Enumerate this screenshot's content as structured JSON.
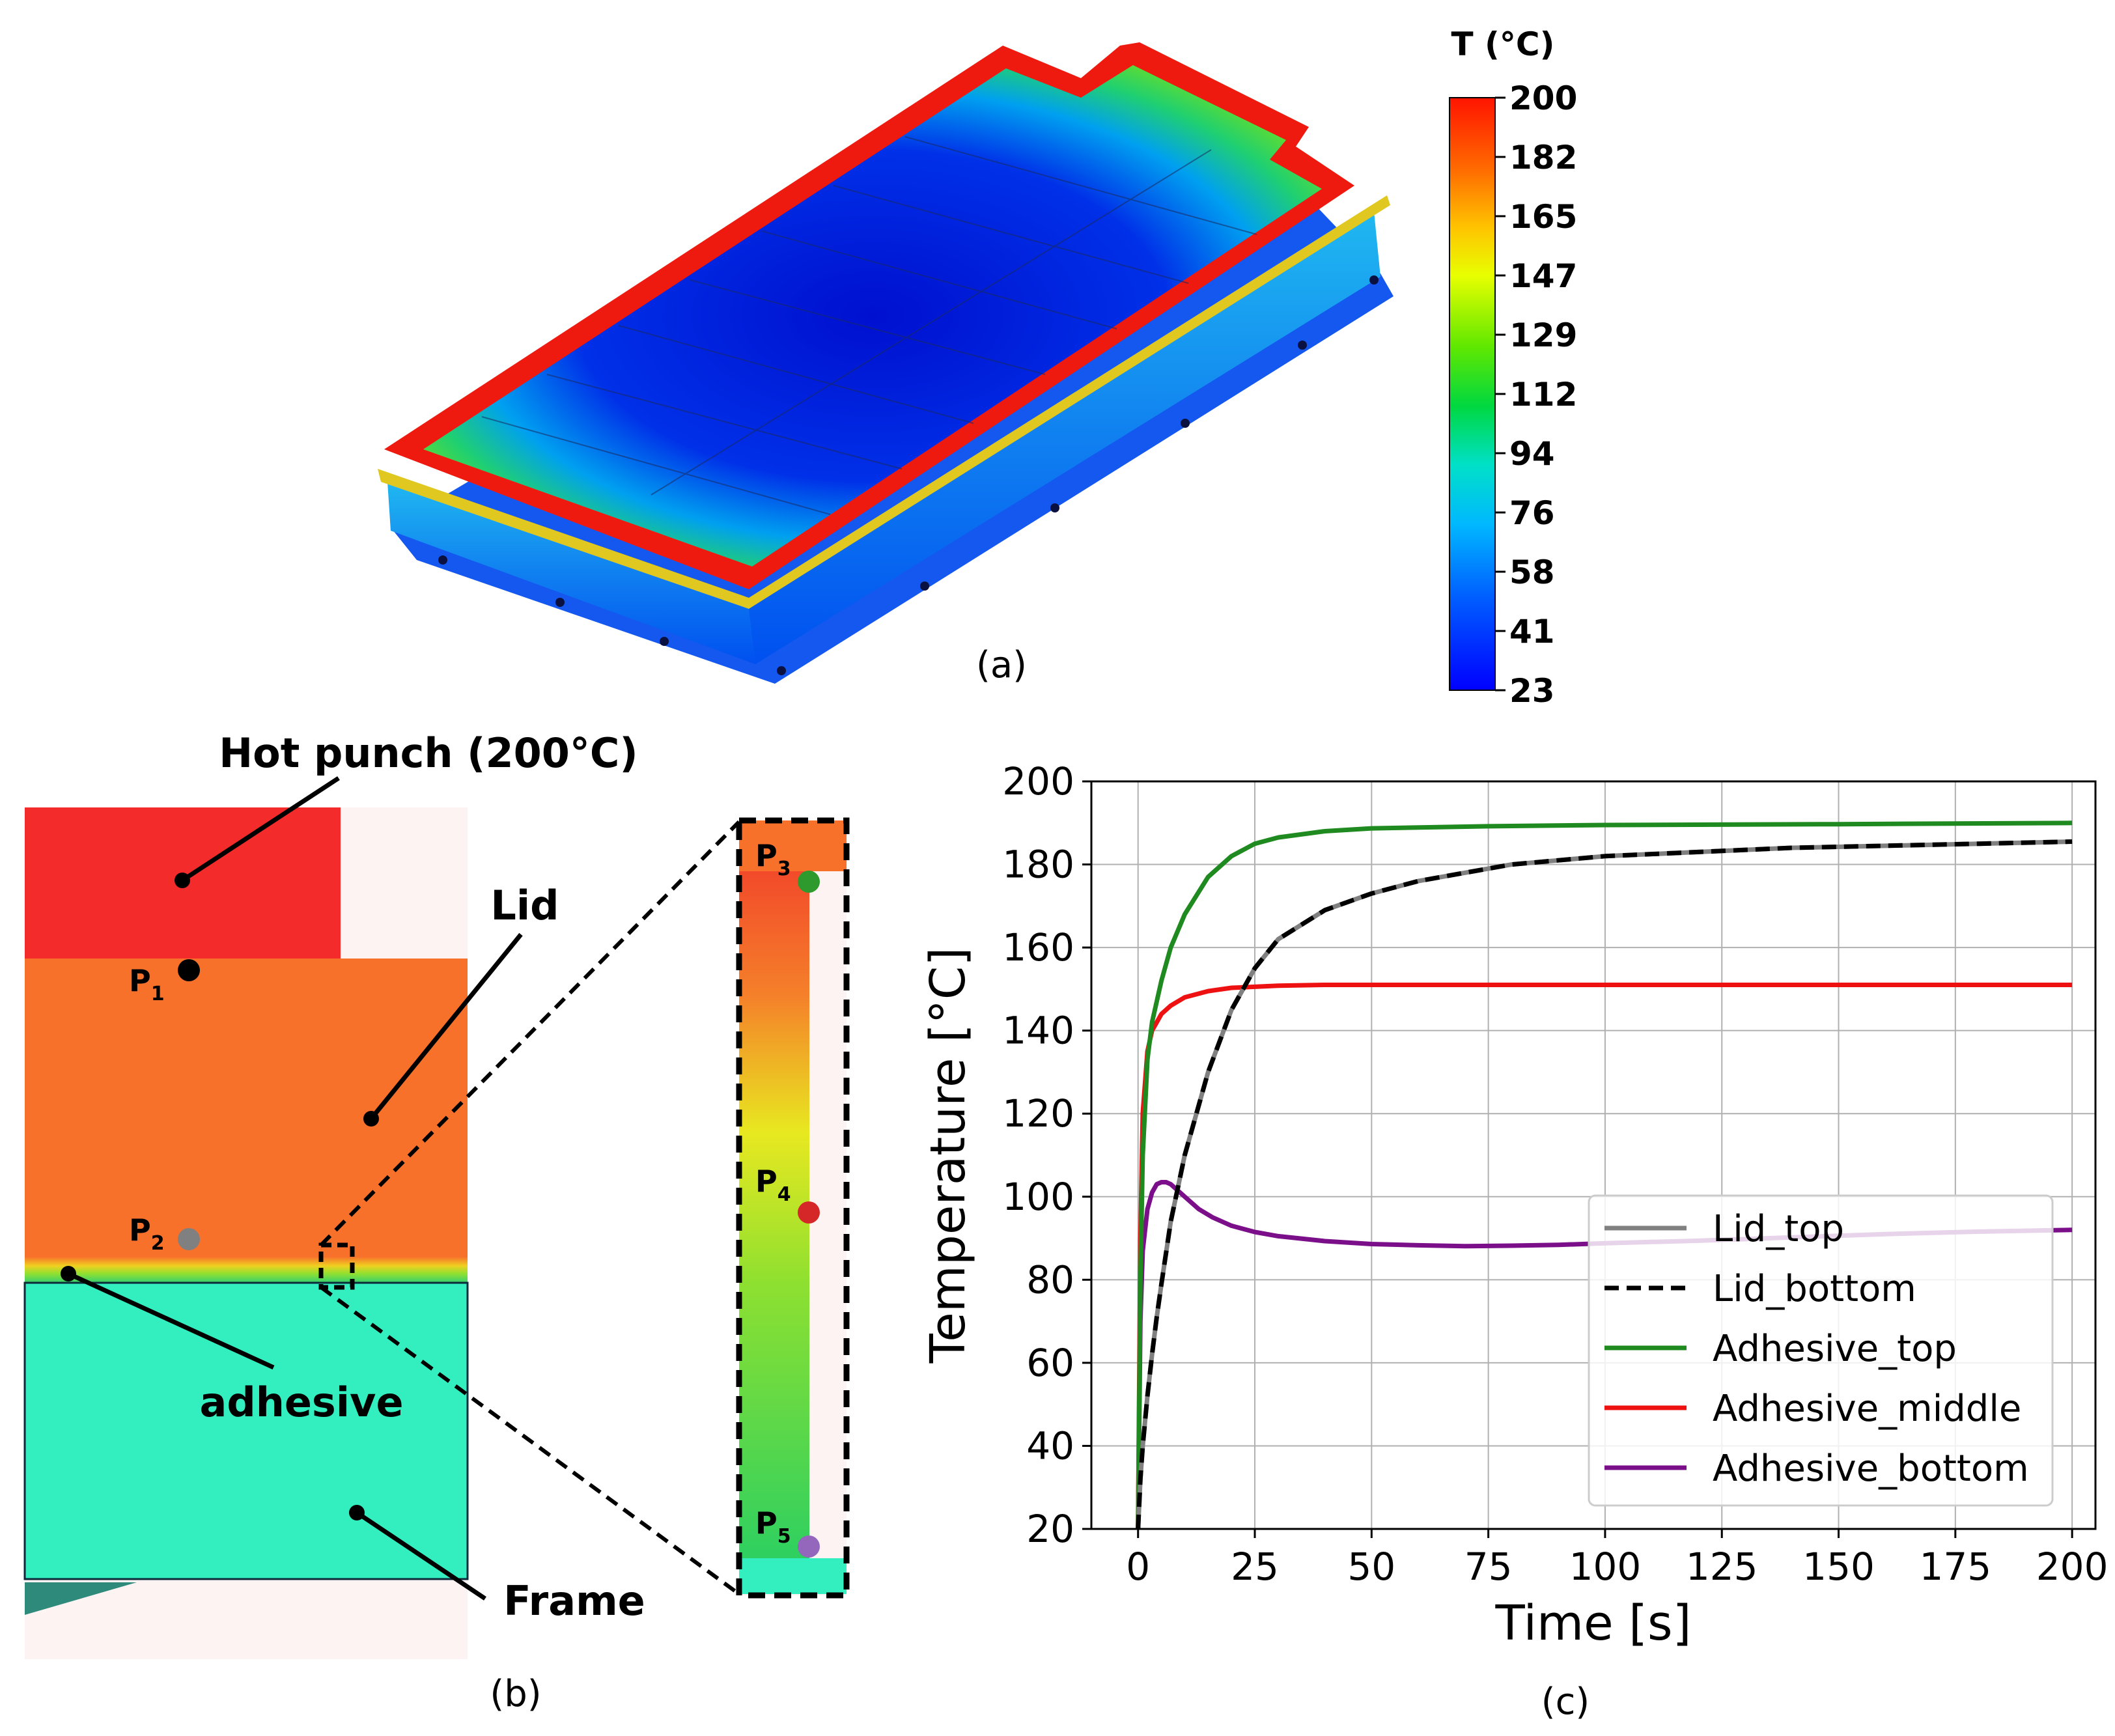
{
  "panel_a": {
    "label": "(a)",
    "colorbar": {
      "title": "T (°C)",
      "ticks": [
        "200",
        "182",
        "165",
        "147",
        "129",
        "112",
        "94",
        "76",
        "58",
        "41",
        "23"
      ],
      "colors": [
        "#ff1a00",
        "#ff7a00",
        "#ffd000",
        "#c8ff00",
        "#40e000",
        "#00d860",
        "#00e0d0",
        "#00a8ff",
        "#0050ff",
        "#0000ff"
      ]
    }
  },
  "panel_b": {
    "label": "(b)",
    "annotations": {
      "hot_punch": "Hot punch (200°C)",
      "lid": "Lid",
      "adhesive": "adhesive",
      "frame": "Frame"
    },
    "points": {
      "p1": {
        "main": "P",
        "sub": "1",
        "color": "#000000"
      },
      "p2": {
        "main": "P",
        "sub": "2",
        "color": "#808080"
      },
      "p3": {
        "main": "P",
        "sub": "3",
        "color": "#2e9a2e"
      },
      "p4": {
        "main": "P",
        "sub": "4",
        "color": "#d62728"
      },
      "p5": {
        "main": "P",
        "sub": "5",
        "color": "#9467bd"
      }
    },
    "colors": {
      "punch": "#f32b2b",
      "lid": "#f7712b",
      "frame": "#33efc0",
      "background_part": "#fdf3f3"
    }
  },
  "panel_c": {
    "label": "(c)"
  },
  "chart_data": {
    "type": "line",
    "xlabel": "Time [s]",
    "ylabel": "Temperature [°C]",
    "xlim": [
      -10,
      205
    ],
    "ylim": [
      20,
      200
    ],
    "xticks": [
      0,
      25,
      50,
      75,
      100,
      125,
      150,
      175,
      200
    ],
    "yticks": [
      20,
      40,
      60,
      80,
      100,
      120,
      140,
      160,
      180,
      200
    ],
    "grid": true,
    "legend_position": "lower-right",
    "series": [
      {
        "name": "Lid_top",
        "color": "#808080",
        "dash": "solid",
        "x": [
          0,
          0.5,
          1,
          2,
          3,
          4,
          5,
          7,
          10,
          15,
          20,
          25,
          30,
          40,
          50,
          60,
          70,
          80,
          90,
          100,
          120,
          140,
          160,
          180,
          200
        ],
        "y": [
          20,
          32,
          40,
          52,
          62,
          71,
          79,
          94,
          110,
          130,
          145,
          155,
          162,
          169,
          173,
          176,
          178,
          180,
          181,
          182,
          183,
          184,
          184.5,
          185,
          185.5
        ]
      },
      {
        "name": "Lid_bottom",
        "color": "#000000",
        "dash": "dashed",
        "x": [
          0,
          0.5,
          1,
          2,
          3,
          4,
          5,
          7,
          10,
          15,
          20,
          25,
          30,
          40,
          50,
          60,
          70,
          80,
          90,
          100,
          120,
          140,
          160,
          180,
          200
        ],
        "y": [
          20,
          32,
          40,
          52,
          62,
          71,
          79,
          94,
          110,
          130,
          145,
          155,
          162,
          169,
          173,
          176,
          178,
          180,
          181,
          182,
          183,
          184,
          184.5,
          185,
          185.5
        ]
      },
      {
        "name": "Adhesive_top",
        "color": "#1f8a1f",
        "dash": "solid",
        "x": [
          0,
          0.5,
          1,
          2,
          3,
          5,
          7,
          10,
          15,
          20,
          25,
          30,
          40,
          50,
          75,
          100,
          150,
          200
        ],
        "y": [
          20,
          80,
          110,
          133,
          142,
          152,
          160,
          168,
          177,
          182,
          185,
          186.5,
          188,
          188.7,
          189.2,
          189.5,
          189.7,
          190
        ]
      },
      {
        "name": "Adhesive_middle",
        "color": "#ee1111",
        "dash": "solid",
        "x": [
          0,
          0.5,
          1,
          2,
          3,
          5,
          7,
          10,
          15,
          20,
          30,
          40,
          50,
          75,
          100,
          150,
          200
        ],
        "y": [
          20,
          90,
          120,
          135,
          140,
          144,
          146,
          148,
          149.5,
          150.3,
          150.8,
          151,
          151,
          151,
          151,
          151,
          151
        ]
      },
      {
        "name": "Adhesive_bottom",
        "color": "#7b0f8a",
        "dash": "solid",
        "x": [
          0,
          0.5,
          1,
          2,
          3,
          4,
          5,
          6,
          7,
          8,
          10,
          13,
          16,
          20,
          25,
          30,
          40,
          50,
          60,
          70,
          80,
          90,
          100,
          120,
          140,
          160,
          180,
          200
        ],
        "y": [
          20,
          70,
          87,
          97,
          101,
          103,
          103.5,
          103.5,
          103,
          102,
          100,
          97,
          95,
          93,
          91.5,
          90.5,
          89.3,
          88.6,
          88.3,
          88.1,
          88.2,
          88.4,
          88.8,
          89.4,
          90.2,
          91,
          91.6,
          92
        ]
      }
    ]
  }
}
